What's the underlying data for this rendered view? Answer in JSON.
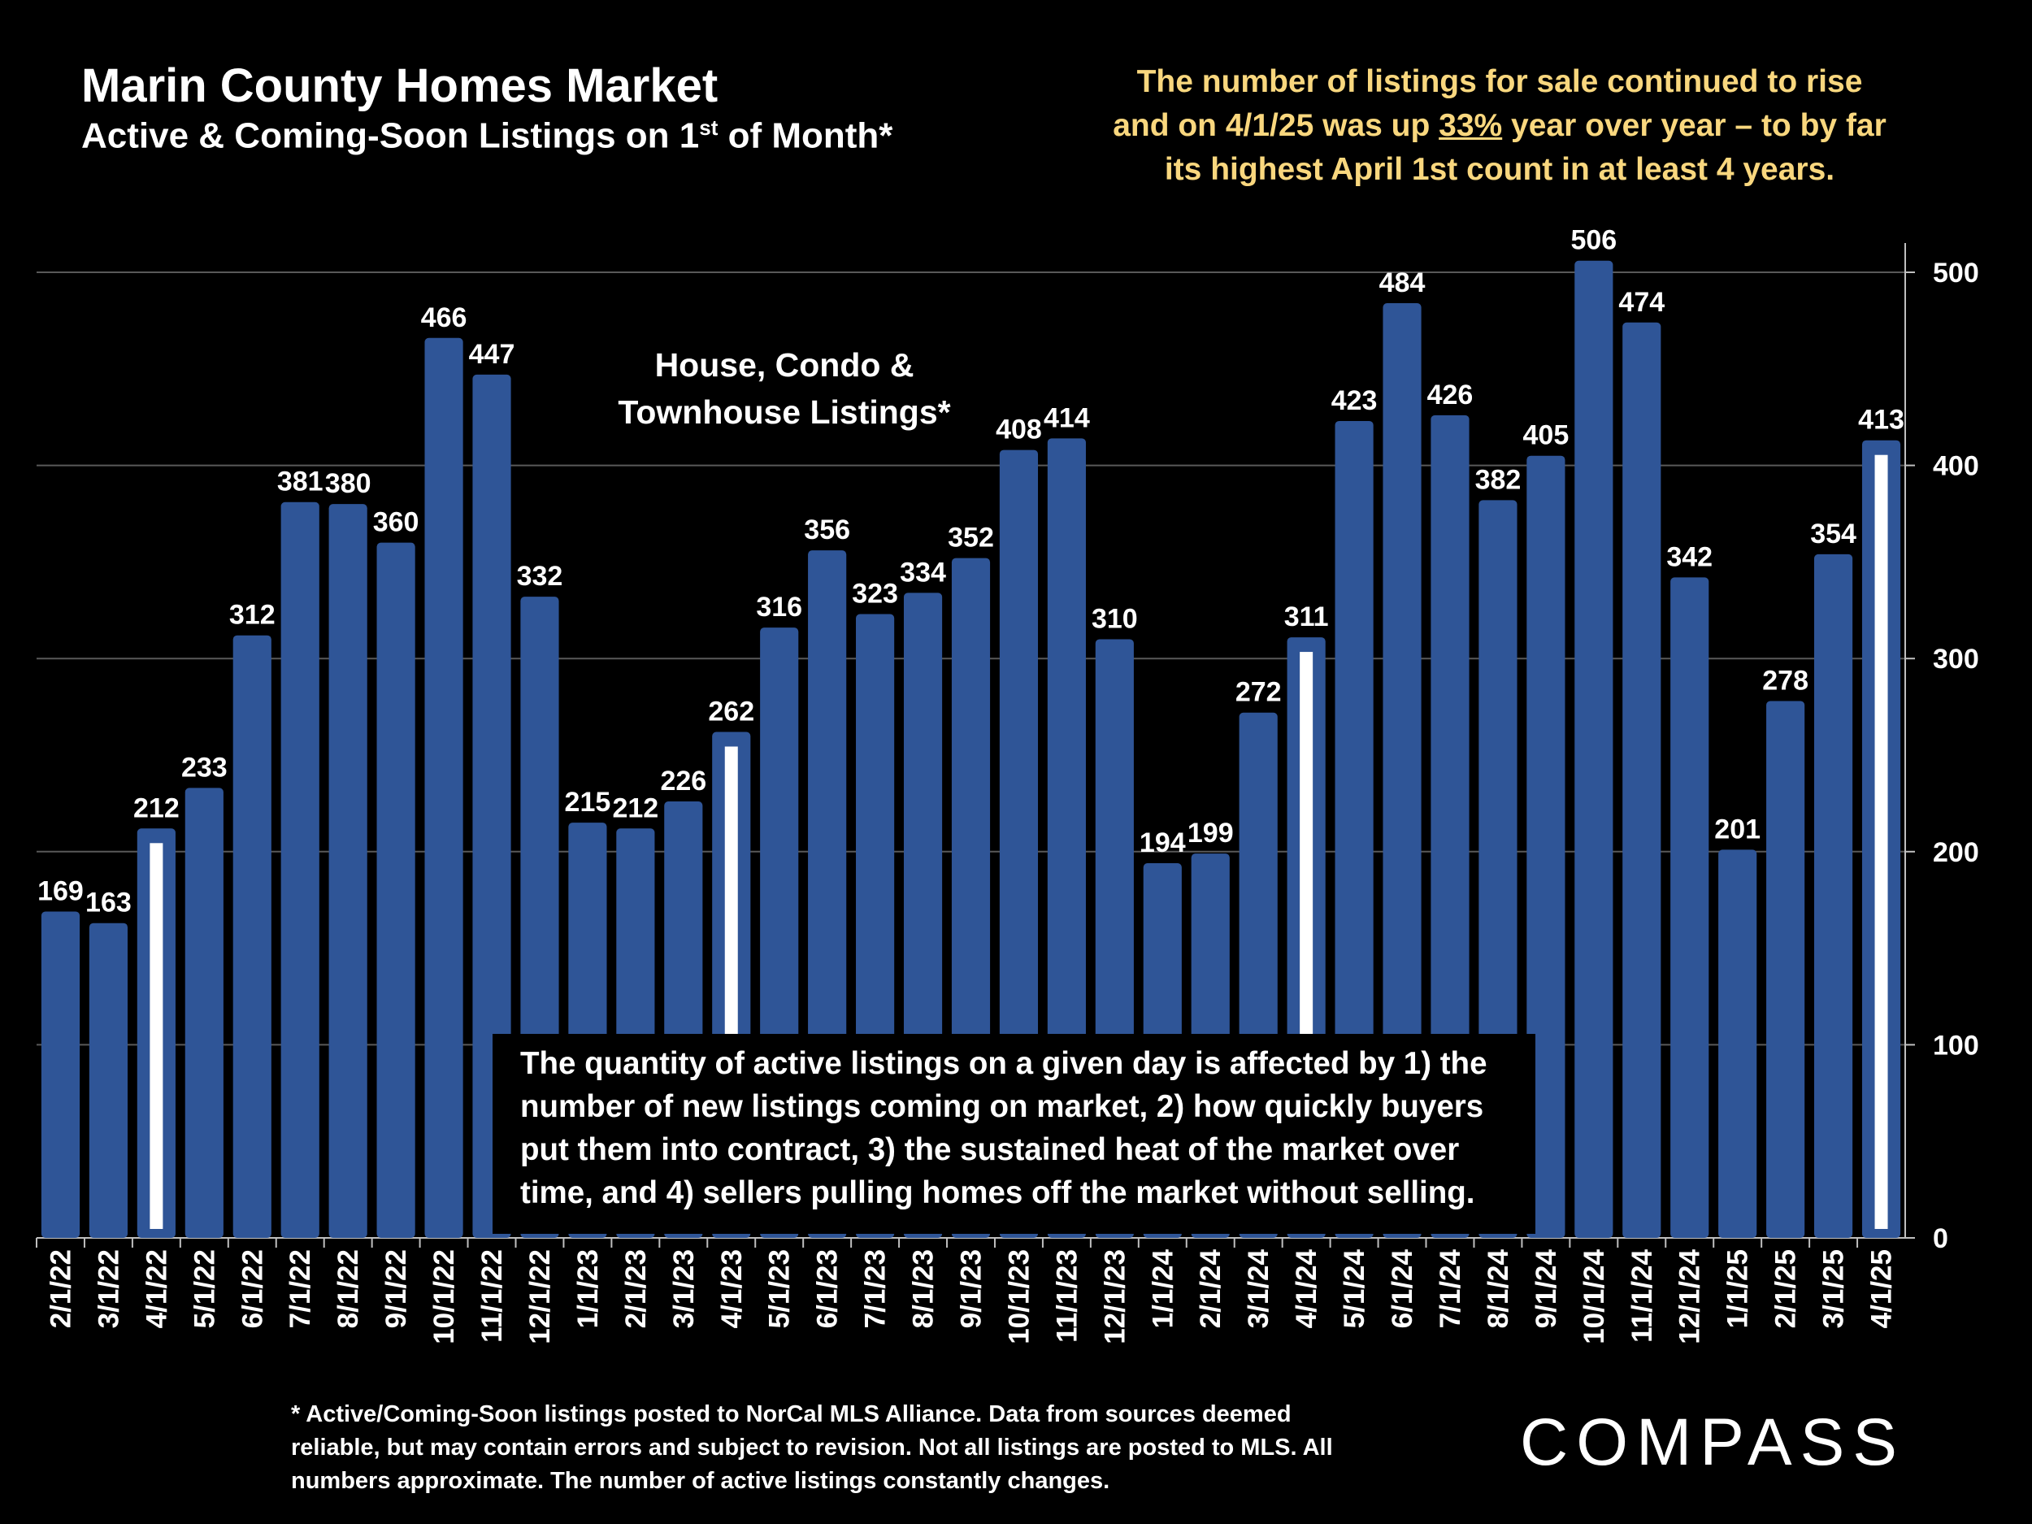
{
  "chart_data": {
    "type": "bar",
    "title": "Marin County Homes Market",
    "subtitle": {
      "before": "Active & Coming-Soon Listings on 1",
      "sup": "st",
      "after": " of Month*"
    },
    "annotation": {
      "before": "The number of listings for sale continued to rise and on 4/1/25 was up ",
      "emphasis": "33%",
      "after": " year over year – to by far its highest April 1st count in at least 4 years."
    },
    "series_label": "House, Condo & Townhouse Listings*",
    "note": "The quantity of active listings on a given day is affected by 1) the number of new listings coming on market, 2) how quickly buyers put them into contract, 3) the sustained heat of the market over time, and 4) sellers pulling homes off the market without selling.",
    "footnote": "* Active/Coming-Soon listings posted to NorCal MLS Alliance.  Data from sources deemed reliable, but may contain errors and subject to revision.  Not all listings are posted to MLS. All numbers approximate. The number of active listings constantly changes.",
    "brand": "COMPASS",
    "categories": [
      "2/1/22",
      "3/1/22",
      "4/1/22",
      "5/1/22",
      "6/1/22",
      "7/1/22",
      "8/1/22",
      "9/1/22",
      "10/1/22",
      "11/1/22",
      "12/1/22",
      "1/1/23",
      "2/1/23",
      "3/1/23",
      "4/1/23",
      "5/1/23",
      "6/1/23",
      "7/1/23",
      "8/1/23",
      "9/1/23",
      "10/1/23",
      "11/1/23",
      "12/1/23",
      "1/1/24",
      "2/1/24",
      "3/1/24",
      "4/1/24",
      "5/1/24",
      "6/1/24",
      "7/1/24",
      "8/1/24",
      "9/1/24",
      "10/1/24",
      "11/1/24",
      "12/1/24",
      "1/1/25",
      "2/1/25",
      "3/1/25",
      "4/1/25"
    ],
    "values": [
      169,
      163,
      212,
      233,
      312,
      381,
      380,
      360,
      466,
      447,
      332,
      215,
      212,
      226,
      262,
      316,
      356,
      323,
      334,
      352,
      408,
      414,
      310,
      194,
      199,
      272,
      311,
      423,
      484,
      426,
      382,
      405,
      506,
      474,
      342,
      201,
      278,
      354,
      413
    ],
    "color": "#2f5597",
    "highlight_categories": [
      "4/1/22",
      "4/1/23",
      "4/1/24",
      "4/1/25"
    ],
    "highlight_color": "#ffffff",
    "ylim": [
      0,
      500
    ],
    "yticks": [
      0,
      100,
      200,
      300,
      400,
      500
    ],
    "grid": true,
    "y_axis_side": "right"
  }
}
